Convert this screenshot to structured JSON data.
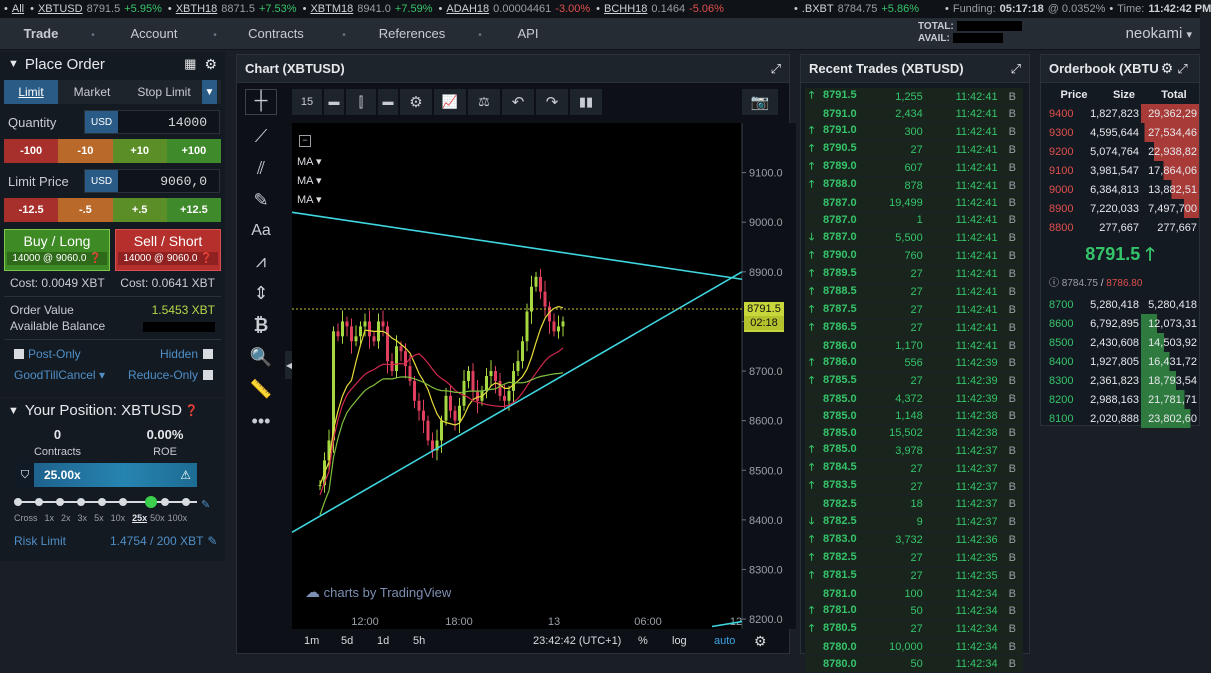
{
  "ticker": {
    "all_label": "All",
    "items": [
      {
        "sym": "XBTUSD",
        "price": "8791.5",
        "chg": "+5.95%",
        "dir": "up"
      },
      {
        "sym": "XBTH18",
        "price": "8871.5",
        "chg": "+7.53%",
        "dir": "up"
      },
      {
        "sym": "XBTM18",
        "price": "8941.0",
        "chg": "+7.59%",
        "dir": "up"
      },
      {
        "sym": "ADAH18",
        "price": "0.00004461",
        "chg": "-3.00%",
        "dir": "dn"
      },
      {
        "sym": "BCHH18",
        "price": "0.1464",
        "chg": "-5.06%",
        "dir": "dn"
      }
    ],
    "bxbt": {
      "sym": ".BXBT",
      "price": "8784.75",
      "chg": "+5.86%"
    },
    "funding_label": "Funding:",
    "funding_time": "05:17:18",
    "funding_rate": "@ 0.0352%",
    "time_label": "Time:",
    "time": "11:42:42 PM"
  },
  "nav": {
    "items": [
      "Trade",
      "Account",
      "Contracts",
      "References",
      "API"
    ],
    "total_label": "TOTAL:",
    "avail_label": "AVAIL:",
    "user": "neokami"
  },
  "order": {
    "title": "Place Order",
    "tabs": [
      "Limit",
      "Market",
      "Stop Limit"
    ],
    "quantity_label": "Quantity",
    "currency": "USD",
    "quantity": "14000",
    "qty_steps": [
      "-100",
      "-10",
      "+10",
      "+100"
    ],
    "limit_label": "Limit Price",
    "limit_price": "9060,0",
    "price_steps": [
      "-12.5",
      "-.5",
      "+.5",
      "+12.5"
    ],
    "buy_label": "Buy / Long",
    "buy_sub": "14000 @ 9060.0",
    "sell_label": "Sell / Short",
    "sell_sub": "14000 @ 9060.0",
    "cost_buy": "Cost: 0.0049 XBT",
    "cost_sell": "Cost: 0.0641 XBT",
    "order_value_label": "Order Value",
    "order_value": "1.5453 XBT",
    "avail_balance_label": "Available Balance",
    "post_only": "Post-Only",
    "hidden": "Hidden",
    "gtc": "GoodTillCancel",
    "reduce_only": "Reduce-Only"
  },
  "position": {
    "title": "Your Position: XBTUSD",
    "contracts": "0",
    "contracts_label": "Contracts",
    "roe": "0.00%",
    "roe_label": "ROE",
    "leverage": "25.00x",
    "lev_ticks": [
      "Cross",
      "1x",
      "2x",
      "3x",
      "5x",
      "10x",
      "25x",
      "50x",
      "100x"
    ],
    "risk_label": "Risk Limit",
    "risk_value": "1.4754 / 200 XBT"
  },
  "chart": {
    "title": "Chart (XBTUSD)",
    "interval": "15",
    "ma_labels": [
      "MA",
      "MA",
      "MA"
    ],
    "price_ticks": [
      "9100.0",
      "9000.0",
      "8900.0",
      "8800.0",
      "8700.0",
      "8600.0",
      "8500.0",
      "8400.0",
      "8300.0",
      "8200.0"
    ],
    "last_price": "8791.5",
    "countdown": "02:18",
    "time_ticks": [
      "12:00",
      "18:00",
      "13",
      "06:00",
      "12"
    ],
    "watermark": "charts by TradingView",
    "ranges": [
      "1m",
      "5d",
      "1d",
      "5h"
    ],
    "clock": "23:42:42 (UTC+1)",
    "pct": "%",
    "log": "log",
    "auto": "auto"
  },
  "chart_data": {
    "type": "candlestick",
    "ylim": [
      8180,
      9200
    ],
    "series": [
      {
        "name": "",
        "color": "#e8dc3a"
      },
      {
        "name": "",
        "color": "#d0284e"
      },
      {
        "name": "",
        "color": "#7fbf3f"
      }
    ]
  },
  "trades": {
    "title": "Recent Trades (XBTUSD)",
    "rows": [
      [
        "8791.5",
        "1,255",
        "11:42:41",
        "B",
        "up"
      ],
      [
        "8791.0",
        "2,434",
        "11:42:41",
        "B",
        ""
      ],
      [
        "8791.0",
        "300",
        "11:42:41",
        "B",
        "up"
      ],
      [
        "8790.5",
        "27",
        "11:42:41",
        "B",
        "up"
      ],
      [
        "8789.0",
        "607",
        "11:42:41",
        "B",
        "up"
      ],
      [
        "8788.0",
        "878",
        "11:42:41",
        "B",
        "up"
      ],
      [
        "8787.0",
        "19,499",
        "11:42:41",
        "B",
        ""
      ],
      [
        "8787.0",
        "1",
        "11:42:41",
        "B",
        ""
      ],
      [
        "8787.0",
        "5,500",
        "11:42:41",
        "B",
        "dn"
      ],
      [
        "8790.0",
        "760",
        "11:42:41",
        "B",
        "up"
      ],
      [
        "8789.5",
        "27",
        "11:42:41",
        "B",
        "up"
      ],
      [
        "8788.5",
        "27",
        "11:42:41",
        "B",
        "up"
      ],
      [
        "8787.5",
        "27",
        "11:42:41",
        "B",
        "up"
      ],
      [
        "8786.5",
        "27",
        "11:42:41",
        "B",
        "up"
      ],
      [
        "8786.0",
        "1,170",
        "11:42:41",
        "B",
        ""
      ],
      [
        "8786.0",
        "556",
        "11:42:39",
        "B",
        "up"
      ],
      [
        "8785.5",
        "27",
        "11:42:39",
        "B",
        "up"
      ],
      [
        "8785.0",
        "4,372",
        "11:42:39",
        "B",
        ""
      ],
      [
        "8785.0",
        "1,148",
        "11:42:38",
        "B",
        ""
      ],
      [
        "8785.0",
        "15,502",
        "11:42:38",
        "B",
        ""
      ],
      [
        "8785.0",
        "3,978",
        "11:42:37",
        "B",
        "up"
      ],
      [
        "8784.5",
        "27",
        "11:42:37",
        "B",
        "up"
      ],
      [
        "8783.5",
        "27",
        "11:42:37",
        "B",
        "up"
      ],
      [
        "8782.5",
        "18",
        "11:42:37",
        "B",
        ""
      ],
      [
        "8782.5",
        "9",
        "11:42:37",
        "B",
        "dn"
      ],
      [
        "8783.0",
        "3,732",
        "11:42:36",
        "B",
        "up"
      ],
      [
        "8782.5",
        "27",
        "11:42:35",
        "B",
        "up"
      ],
      [
        "8781.5",
        "27",
        "11:42:35",
        "B",
        "up"
      ],
      [
        "8781.0",
        "100",
        "11:42:34",
        "B",
        ""
      ],
      [
        "8781.0",
        "50",
        "11:42:34",
        "B",
        "up"
      ],
      [
        "8780.5",
        "27",
        "11:42:34",
        "B",
        "up"
      ],
      [
        "8780.0",
        "10,000",
        "11:42:34",
        "B",
        ""
      ],
      [
        "8780.0",
        "50",
        "11:42:34",
        "B",
        ""
      ]
    ]
  },
  "orderbook": {
    "title": "Orderbook (XBTU",
    "headers": [
      "Price",
      "Size",
      "Total"
    ],
    "asks": [
      [
        "9400",
        "1,827,823",
        "29,362,29"
      ],
      [
        "9300",
        "4,595,644",
        "27,534,46"
      ],
      [
        "9200",
        "5,074,764",
        "22,938,82"
      ],
      [
        "9100",
        "3,981,547",
        "17,864,06"
      ],
      [
        "9000",
        "6,384,813",
        "13,882,51"
      ],
      [
        "8900",
        "7,220,033",
        "7,497,700"
      ],
      [
        "8800",
        "277,667",
        "277,667"
      ]
    ],
    "ask_depth": [
      1.0,
      0.94,
      0.78,
      0.61,
      0.47,
      0.26,
      0.0
    ],
    "last": "8791.5",
    "index": "8784.75",
    "mark": "8786.80",
    "bids": [
      [
        "8700",
        "5,280,418",
        "5,280,418"
      ],
      [
        "8600",
        "6,792,895",
        "12,073,31"
      ],
      [
        "8500",
        "2,430,608",
        "14,503,92"
      ],
      [
        "8400",
        "1,927,805",
        "16,431,72"
      ],
      [
        "8300",
        "2,361,823",
        "18,793,54"
      ],
      [
        "8200",
        "2,988,163",
        "21,781,71"
      ],
      [
        "8100",
        "2,020,888",
        "23,802,60"
      ]
    ],
    "bid_depth": [
      0.0,
      0.28,
      0.4,
      0.49,
      0.6,
      0.75,
      0.85
    ]
  }
}
